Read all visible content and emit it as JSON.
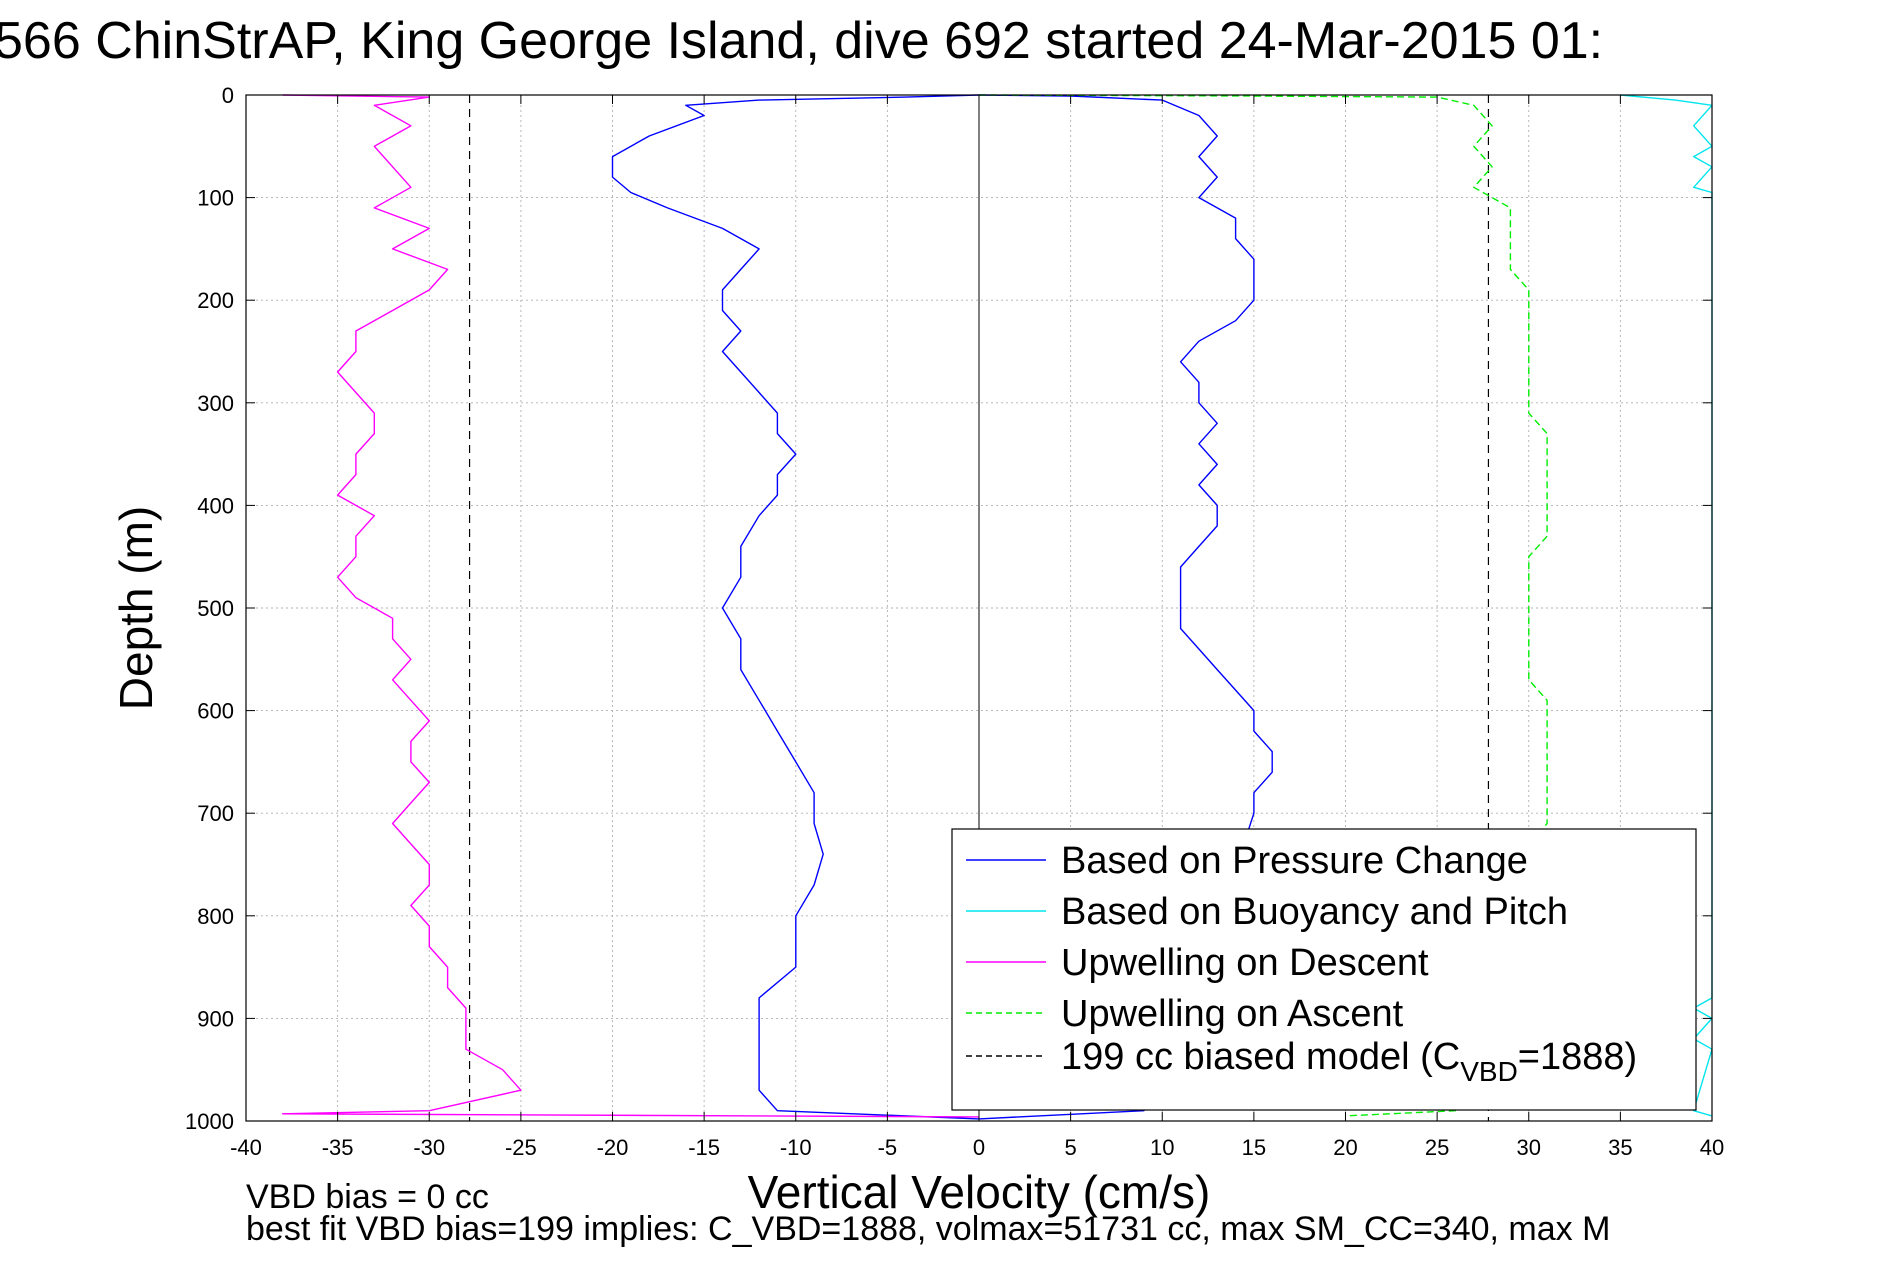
{
  "chart_data": {
    "type": "line",
    "title": "566 ChinStrAP, King George Island, dive 692 started 24-Mar-2015 01:",
    "xlabel": "Vertical Velocity (cm/s)",
    "ylabel": "Depth (m)",
    "xlim": [
      -40,
      40
    ],
    "ylim": [
      0,
      1000
    ],
    "y_reversed": true,
    "xticks": [
      -40,
      -35,
      -30,
      -25,
      -20,
      -15,
      -10,
      -5,
      0,
      5,
      10,
      15,
      20,
      25,
      30,
      35,
      40
    ],
    "yticks": [
      0,
      100,
      200,
      300,
      400,
      500,
      600,
      700,
      800,
      900,
      1000
    ],
    "grid": true,
    "legend_position": "bottom-right",
    "footer_lines": [
      "VBD bias = 0 cc",
      "best fit VBD bias=199 implies: C_VBD=1888, volmax=51731 cc, max SM_CC=340, max M"
    ],
    "legend": [
      {
        "label": "Based on Pressure Change",
        "color": "#0000ff",
        "dash": "solid"
      },
      {
        "label": "Based on Buoyancy and Pitch",
        "color": "#00e5ee",
        "dash": "solid"
      },
      {
        "label": "Upwelling on Descent",
        "color": "#ff00ff",
        "dash": "solid"
      },
      {
        "label": "Upwelling on Ascent",
        "color": "#00ee00",
        "dash": "dashed"
      },
      {
        "label": "199 cc biased model (C",
        "sub": "VBD",
        "suffix": "=1888)",
        "color": "#000000",
        "dash": "dashed"
      }
    ],
    "reference_lines": [
      {
        "name": "199 cc biased model",
        "x": -27.8,
        "color": "#000000"
      },
      {
        "name": "199 cc biased model",
        "x": 27.8,
        "color": "#000000"
      }
    ],
    "series": [
      {
        "color": "#0000ff",
        "style": "solid",
        "points": [
          [
            0,
            0
          ],
          [
            -4,
            2
          ],
          [
            -12,
            5
          ],
          [
            -16,
            10
          ],
          [
            -15,
            20
          ],
          [
            -18,
            40
          ],
          [
            -20,
            60
          ],
          [
            -20,
            80
          ],
          [
            -19,
            95
          ],
          [
            -17,
            110
          ],
          [
            -14,
            130
          ],
          [
            -12,
            150
          ],
          [
            -13,
            170
          ],
          [
            -14,
            190
          ],
          [
            -14,
            210
          ],
          [
            -13,
            230
          ],
          [
            -14,
            250
          ],
          [
            -13,
            270
          ],
          [
            -12,
            290
          ],
          [
            -11,
            310
          ],
          [
            -11,
            330
          ],
          [
            -10,
            350
          ],
          [
            -11,
            370
          ],
          [
            -11,
            390
          ],
          [
            -12,
            410
          ],
          [
            -13,
            440
          ],
          [
            -13,
            470
          ],
          [
            -14,
            500
          ],
          [
            -13,
            530
          ],
          [
            -13,
            560
          ],
          [
            -12,
            590
          ],
          [
            -11,
            620
          ],
          [
            -10,
            650
          ],
          [
            -9,
            680
          ],
          [
            -9,
            710
          ],
          [
            -8.5,
            740
          ],
          [
            -9,
            770
          ],
          [
            -10,
            800
          ],
          [
            -10,
            830
          ],
          [
            -10,
            850
          ],
          [
            -12,
            880
          ],
          [
            -12,
            910
          ],
          [
            -12,
            940
          ],
          [
            -12,
            970
          ],
          [
            -11,
            990
          ],
          [
            0,
            998
          ]
        ]
      },
      {
        "color": "#0000ff",
        "style": "solid",
        "points": [
          [
            0,
            0
          ],
          [
            5,
            1
          ],
          [
            10,
            5
          ],
          [
            12,
            20
          ],
          [
            13,
            40
          ],
          [
            12,
            60
          ],
          [
            13,
            80
          ],
          [
            12,
            100
          ],
          [
            14,
            120
          ],
          [
            14,
            140
          ],
          [
            15,
            160
          ],
          [
            15,
            180
          ],
          [
            15,
            200
          ],
          [
            14,
            220
          ],
          [
            12,
            240
          ],
          [
            11,
            260
          ],
          [
            12,
            280
          ],
          [
            12,
            300
          ],
          [
            13,
            320
          ],
          [
            12,
            340
          ],
          [
            13,
            360
          ],
          [
            12,
            380
          ],
          [
            13,
            400
          ],
          [
            13,
            420
          ],
          [
            12,
            440
          ],
          [
            11,
            460
          ],
          [
            11,
            480
          ],
          [
            11,
            500
          ],
          [
            11,
            520
          ],
          [
            12,
            540
          ],
          [
            13,
            560
          ],
          [
            14,
            580
          ],
          [
            15,
            600
          ],
          [
            15,
            620
          ],
          [
            16,
            640
          ],
          [
            16,
            660
          ],
          [
            15,
            680
          ],
          [
            15,
            700
          ],
          [
            11,
            920
          ],
          [
            9,
            990
          ],
          [
            0,
            998
          ]
        ]
      },
      {
        "color": "#00e5ee",
        "style": "solid",
        "points": [
          [
            35,
            0
          ],
          [
            38,
            5
          ],
          [
            40,
            10
          ],
          [
            39,
            30
          ],
          [
            40,
            50
          ],
          [
            39,
            60
          ],
          [
            40,
            70
          ],
          [
            39,
            90
          ],
          [
            40,
            95
          ],
          [
            40,
            880
          ],
          [
            39,
            890
          ],
          [
            40,
            900
          ],
          [
            39,
            920
          ],
          [
            40,
            930
          ],
          [
            39,
            990
          ],
          [
            40,
            995
          ]
        ]
      },
      {
        "color": "#ff00ff",
        "style": "solid",
        "points": [
          [
            -38,
            0
          ],
          [
            -30,
            2
          ],
          [
            -33,
            10
          ],
          [
            -31,
            30
          ],
          [
            -33,
            50
          ],
          [
            -32,
            70
          ],
          [
            -31,
            90
          ],
          [
            -33,
            110
          ],
          [
            -30,
            130
          ],
          [
            -32,
            150
          ],
          [
            -29,
            170
          ],
          [
            -30,
            190
          ],
          [
            -32,
            210
          ],
          [
            -34,
            230
          ],
          [
            -34,
            250
          ],
          [
            -35,
            270
          ],
          [
            -34,
            290
          ],
          [
            -33,
            310
          ],
          [
            -33,
            330
          ],
          [
            -34,
            350
          ],
          [
            -34,
            370
          ],
          [
            -35,
            390
          ],
          [
            -33,
            410
          ],
          [
            -34,
            430
          ],
          [
            -34,
            450
          ],
          [
            -35,
            470
          ],
          [
            -34,
            490
          ],
          [
            -32,
            510
          ],
          [
            -32,
            530
          ],
          [
            -31,
            550
          ],
          [
            -32,
            570
          ],
          [
            -31,
            590
          ],
          [
            -30,
            610
          ],
          [
            -31,
            630
          ],
          [
            -31,
            650
          ],
          [
            -30,
            670
          ],
          [
            -31,
            690
          ],
          [
            -32,
            710
          ],
          [
            -31,
            730
          ],
          [
            -30,
            750
          ],
          [
            -30,
            770
          ],
          [
            -31,
            790
          ],
          [
            -30,
            810
          ],
          [
            -30,
            830
          ],
          [
            -29,
            850
          ],
          [
            -29,
            870
          ],
          [
            -28,
            890
          ],
          [
            -28,
            910
          ],
          [
            -28,
            930
          ],
          [
            -26,
            950
          ],
          [
            -25,
            970
          ],
          [
            -30,
            990
          ],
          [
            -38,
            993
          ],
          [
            0,
            996
          ]
        ]
      },
      {
        "color": "#00ee00",
        "style": "dashed",
        "points": [
          [
            0,
            0
          ],
          [
            15,
            1
          ],
          [
            25,
            2
          ],
          [
            27,
            10
          ],
          [
            28,
            30
          ],
          [
            27,
            50
          ],
          [
            28,
            70
          ],
          [
            27,
            90
          ],
          [
            29,
            110
          ],
          [
            29,
            130
          ],
          [
            29,
            150
          ],
          [
            29,
            170
          ],
          [
            30,
            190
          ],
          [
            30,
            210
          ],
          [
            30,
            230
          ],
          [
            30,
            250
          ],
          [
            30,
            270
          ],
          [
            30,
            290
          ],
          [
            30,
            310
          ],
          [
            31,
            330
          ],
          [
            31,
            350
          ],
          [
            31,
            370
          ],
          [
            31,
            390
          ],
          [
            31,
            410
          ],
          [
            31,
            430
          ],
          [
            30,
            450
          ],
          [
            30,
            470
          ],
          [
            30,
            490
          ],
          [
            30,
            510
          ],
          [
            30,
            530
          ],
          [
            30,
            550
          ],
          [
            30,
            570
          ],
          [
            31,
            590
          ],
          [
            31,
            610
          ],
          [
            31,
            630
          ],
          [
            31,
            650
          ],
          [
            31,
            670
          ],
          [
            31,
            690
          ],
          [
            31,
            710
          ],
          [
            30,
            730
          ],
          [
            26,
            990
          ],
          [
            20,
            995
          ]
        ]
      }
    ]
  }
}
